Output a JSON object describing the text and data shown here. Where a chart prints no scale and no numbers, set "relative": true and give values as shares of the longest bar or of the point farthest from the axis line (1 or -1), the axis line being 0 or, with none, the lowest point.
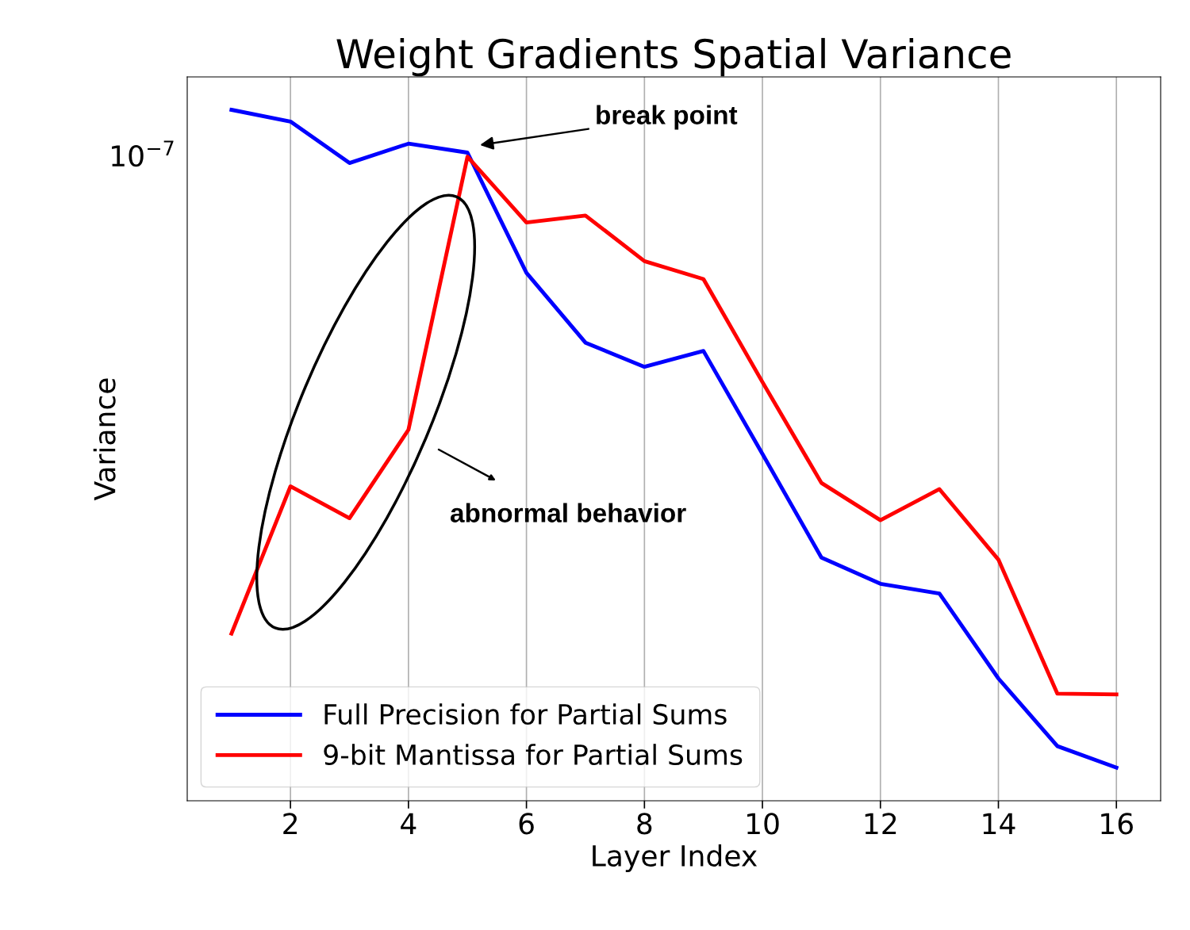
{
  "chart_data": {
    "type": "line",
    "title": "Weight Gradients Spatial Variance",
    "xlabel": "Layer Index",
    "ylabel": "Variance",
    "x": [
      1,
      2,
      3,
      4,
      5,
      6,
      7,
      8,
      9,
      10,
      11,
      12,
      13,
      14,
      15,
      16
    ],
    "relative": true,
    "series": [
      {
        "name": "Full Precision for Partial Sums",
        "color": "#0000ff",
        "values": [
          1,
          0.983,
          0.923,
          0.951,
          0.938,
          0.764,
          0.663,
          0.628,
          0.651,
          0.502,
          0.352,
          0.314,
          0.3,
          0.177,
          0.079,
          0.048
        ]
      },
      {
        "name": "9-bit Mantissa for Partial Sums",
        "color": "#ff0000",
        "values": [
          0.242,
          0.455,
          0.409,
          0.537,
          0.932,
          0.837,
          0.847,
          0.781,
          0.755,
          0.606,
          0.46,
          0.406,
          0.451,
          0.349,
          0.155,
          0.154
        ]
      }
    ],
    "xlim": [
      0.25,
      16.75
    ],
    "xticks": [
      2,
      4,
      6,
      8,
      10,
      12,
      14,
      16
    ],
    "grid": "x",
    "legend": "bottom left",
    "line_style": "solid",
    "marker": "none",
    "annotations": [
      "10$^{−7}$",
      "break point",
      "abnormal behavior"
    ]
  }
}
